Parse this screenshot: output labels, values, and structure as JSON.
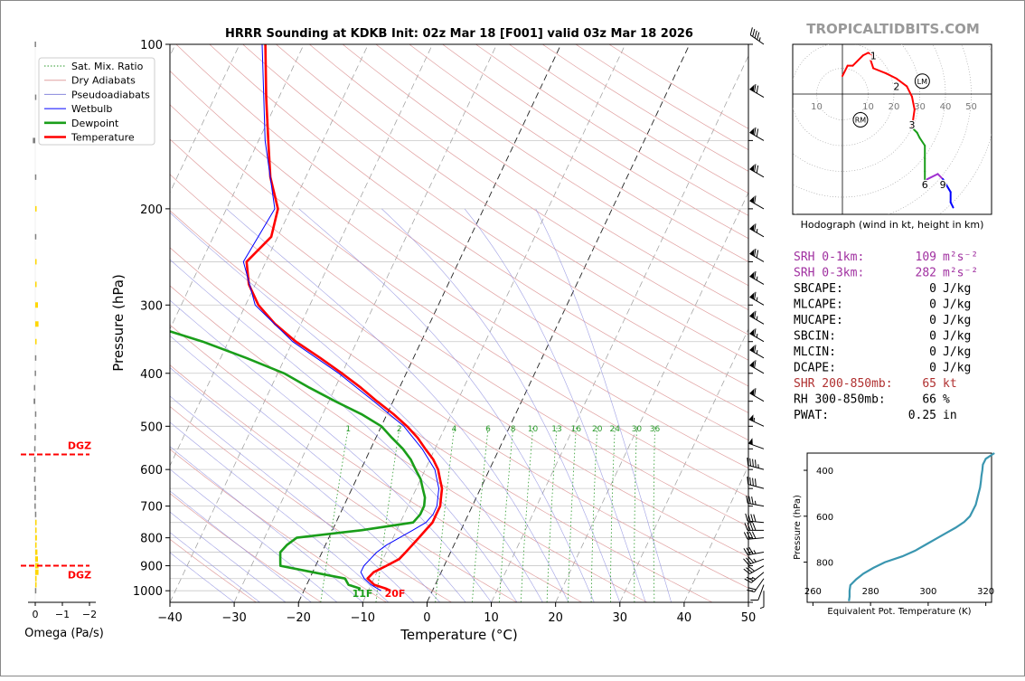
{
  "watermark": "TROPICALTIDBITS.COM",
  "colors": {
    "temperature": "#ff0000",
    "dewpoint": "#1a9e1a",
    "wetbulb": "#0000ff",
    "dgz": "#ff0000",
    "srh": "#a030a0",
    "shear": "#b03030",
    "omega_up": "#ffd700",
    "omega_down": "#808080",
    "theta_e": "#3a96b0"
  },
  "indices": [
    {
      "label": "SRH 0-1km:",
      "value": "109",
      "unit": "m²s⁻²",
      "color": "#a030a0"
    },
    {
      "label": "SRH 0-3km:",
      "value": "282",
      "unit": "m²s⁻²",
      "color": "#a030a0"
    },
    {
      "label": "SBCAPE:",
      "value": "0",
      "unit": "J/kg",
      "color": "#000"
    },
    {
      "label": "MLCAPE:",
      "value": "0",
      "unit": "J/kg",
      "color": "#000"
    },
    {
      "label": "MUCAPE:",
      "value": "0",
      "unit": "J/kg",
      "color": "#000"
    },
    {
      "label": "SBCIN:",
      "value": "0",
      "unit": "J/kg",
      "color": "#000"
    },
    {
      "label": "MLCIN:",
      "value": "0",
      "unit": "J/kg",
      "color": "#000"
    },
    {
      "label": "DCAPE:",
      "value": "0",
      "unit": "J/kg",
      "color": "#000"
    },
    {
      "label": "SHR 200-850mb:",
      "value": "65",
      "unit": "kt",
      "color": "#b03030"
    },
    {
      "label": "RH 300-850mb:",
      "value": "66",
      "unit": "%",
      "color": "#000"
    },
    {
      "label": "PWAT:",
      "value": "0.25",
      "unit": "in",
      "color": "#000"
    }
  ],
  "chart_data": [
    {
      "type": "line",
      "title": "HRRR Sounding at KDKB Init: 02z Mar 18 [F001] valid 03z Mar 18 2026",
      "xlabel": "Temperature (°C)",
      "ylabel": "Pressure (hPa)",
      "xlim": [
        -40,
        50
      ],
      "ylim": [
        1050,
        100
      ],
      "y_log_scale": true,
      "skew_deg_per_decade_approx": 40,
      "xticks": [
        -40,
        -30,
        -20,
        -10,
        0,
        10,
        20,
        30,
        40,
        50
      ],
      "yticks": [
        100,
        200,
        300,
        400,
        500,
        600,
        700,
        800,
        900,
        1000
      ],
      "xtick_labels": [
        "−40",
        "−30",
        "−20",
        "−10",
        "0",
        "10",
        "20",
        "30",
        "40",
        "50"
      ],
      "ytick_labels": [
        "100",
        "200",
        "300",
        "400",
        "500",
        "600",
        "700",
        "800",
        "900",
        "1000"
      ],
      "legend_position": "top-left",
      "legend": [
        "Sat. Mix. Ratio",
        "Dry Adiabats",
        "Pseudoadiabats",
        "Wetbulb",
        "Dewpoint",
        "Temperature"
      ],
      "mixing_ratio_labels": [
        "1",
        "2",
        "4",
        "6",
        "8",
        "10",
        "13",
        "16",
        "20",
        "24",
        "30",
        "36"
      ],
      "surface_labels": {
        "dewpoint": "11F",
        "temperature": "20F"
      },
      "series": [
        {
          "name": "Temperature",
          "pressure": [
            1000,
            990,
            975,
            950,
            925,
            900,
            875,
            850,
            825,
            800,
            775,
            750,
            725,
            700,
            675,
            650,
            625,
            600,
            575,
            550,
            525,
            500,
            475,
            450,
            425,
            400,
            375,
            350,
            325,
            300,
            275,
            250,
            225,
            200,
            175,
            150,
            125,
            100
          ],
          "values": [
            -6.5,
            -7.5,
            -9.5,
            -11.0,
            -10.5,
            -9.0,
            -7.5,
            -7.0,
            -6.5,
            -6.0,
            -5.5,
            -5.0,
            -5.0,
            -5.0,
            -5.5,
            -6.0,
            -7.0,
            -8.0,
            -9.5,
            -11.5,
            -13.5,
            -16.0,
            -19.0,
            -22.5,
            -26.0,
            -30.0,
            -34.5,
            -39.5,
            -44.0,
            -48.0,
            -51.0,
            -53.0,
            -51.0,
            -52.0,
            -55.5,
            -58.5,
            -62.0,
            -66.0
          ]
        },
        {
          "name": "Dewpoint",
          "pressure": [
            1000,
            990,
            975,
            950,
            925,
            900,
            875,
            850,
            825,
            800,
            775,
            750,
            725,
            700,
            675,
            650,
            625,
            600,
            575,
            550,
            525,
            500,
            475,
            450,
            425,
            400,
            375,
            350,
            325,
            300,
            275,
            250,
            225,
            200,
            175,
            150,
            125,
            100
          ],
          "values": [
            -11.5,
            -11.5,
            -13.5,
            -14.5,
            -20.0,
            -25.5,
            -26.0,
            -26.5,
            -26.0,
            -25.0,
            -15.5,
            -8.0,
            -7.5,
            -7.5,
            -8.0,
            -9.0,
            -10.0,
            -11.5,
            -13.0,
            -15.0,
            -17.5,
            -20.0,
            -24.0,
            -29.0,
            -34.0,
            -39.0,
            -46.0,
            -54.0,
            -64.0,
            -70.0,
            -76.0,
            -80.0,
            -78.0,
            -82.0,
            -86.0,
            -90.0,
            -94.0,
            -98.0
          ]
        },
        {
          "name": "Wetbulb",
          "pressure": [
            1000,
            975,
            950,
            925,
            900,
            875,
            850,
            825,
            800,
            775,
            750,
            725,
            700,
            650,
            600,
            550,
            500,
            450,
            400,
            350,
            300,
            250,
            200,
            150,
            100
          ],
          "values": [
            -8.0,
            -10.0,
            -11.5,
            -12.5,
            -12.5,
            -12.0,
            -11.5,
            -10.5,
            -9.0,
            -7.5,
            -6.0,
            -5.5,
            -5.5,
            -6.5,
            -8.5,
            -12.0,
            -16.5,
            -23.0,
            -30.5,
            -40.0,
            -48.5,
            -53.5,
            -52.5,
            -59.0,
            -66.5
          ]
        }
      ],
      "dgz_levels_hpa": [
        563,
        900
      ],
      "dgz_label": "DGZ"
    },
    {
      "type": "bar",
      "title": "",
      "xlabel": "Omega (Pa/s)",
      "xticks": [
        0,
        -1,
        -2
      ],
      "xtick_labels": [
        "0",
        "−1",
        "−2"
      ],
      "xlim": [
        0.2,
        -2.2
      ],
      "pressure": [
        1000,
        975,
        950,
        925,
        900,
        875,
        850,
        825,
        800,
        775,
        750,
        725,
        700,
        675,
        650,
        625,
        600,
        575,
        550,
        525,
        500,
        475,
        450,
        425,
        400,
        375,
        350,
        325,
        300,
        275,
        250,
        225,
        200,
        175,
        150,
        125,
        100
      ],
      "values": [
        0.01,
        -0.02,
        -0.05,
        -0.12,
        -0.12,
        -0.1,
        -0.08,
        -0.05,
        -0.06,
        -0.05,
        -0.03,
        0.01,
        0.03,
        0.03,
        0.02,
        0.05,
        0.03,
        0.04,
        0.04,
        0.03,
        0.02,
        0.01,
        0.06,
        0.05,
        0.02,
        0.01,
        -0.02,
        -0.12,
        -0.1,
        -0.03,
        -0.02,
        0.01,
        -0.01,
        0.01,
        0.09,
        0.01,
        0.02
      ]
    },
    {
      "type": "line",
      "title": "Hodograph (wind in kt, height in km)",
      "xlabel": "",
      "ylabel": "",
      "ring_labels": [
        "10",
        "10",
        "20",
        "30",
        "40",
        "50"
      ],
      "markers": [
        {
          "label": "LM",
          "u": 31,
          "v": 5
        },
        {
          "label": "RM",
          "u": 7,
          "v": -10
        }
      ],
      "height_labels": [
        {
          "label": "1",
          "u": 12,
          "v": 15
        },
        {
          "label": "2",
          "u": 21,
          "v": 3
        },
        {
          "label": "3",
          "u": 27,
          "v": -12
        },
        {
          "label": "6",
          "u": 32,
          "v": -35
        },
        {
          "label": "9",
          "u": 39,
          "v": -35
        }
      ],
      "u": [
        0,
        2,
        4,
        8,
        10,
        12,
        11,
        12,
        17,
        21,
        25,
        27,
        28,
        27,
        29,
        30,
        32,
        32,
        32,
        32,
        32,
        33,
        37,
        39,
        42,
        42,
        43
      ],
      "v": [
        7,
        11,
        11,
        15,
        16,
        15,
        13,
        10,
        8,
        6,
        3,
        -1,
        -6,
        -13,
        -15,
        -17,
        -20,
        -25,
        -30,
        -35,
        -34,
        -33,
        -31,
        -33,
        -38,
        -42,
        -44
      ],
      "segment_colors": [
        "#ff0000",
        "#ff0000",
        "#ff0000",
        "#ff0000",
        "#ff0000",
        "#ff0000",
        "#ff0000",
        "#ff0000",
        "#ff0000",
        "#ff0000",
        "#ff0000",
        "#ff0000",
        "#ff0000",
        "#1a9e1a",
        "#1a9e1a",
        "#1a9e1a",
        "#1a9e1a",
        "#1a9e1a",
        "#1a9e1a",
        "#a030d0",
        "#a030d0",
        "#a030d0",
        "#a030d0",
        "#0000ff",
        "#0000ff",
        "#0000ff"
      ]
    },
    {
      "type": "line",
      "title": "",
      "xlabel": "Equivalent Pot. Temperature (K)",
      "ylabel": "Pressure (hPa)",
      "xlim": [
        258,
        322
      ],
      "ylim": [
        975,
        325
      ],
      "xticks": [
        260,
        280,
        300,
        320
      ],
      "yticks": [
        400,
        600,
        800
      ],
      "pressure": [
        970,
        950,
        925,
        900,
        875,
        850,
        825,
        800,
        775,
        750,
        725,
        700,
        675,
        650,
        625,
        600,
        575,
        550,
        525,
        500,
        475,
        450,
        425,
        400,
        375,
        350,
        325
      ],
      "values": [
        272.5,
        272.7,
        272.7,
        273,
        275,
        277.5,
        281,
        285,
        291,
        295.5,
        299,
        302.5,
        306,
        309.5,
        312.5,
        314.5,
        315.5,
        316.5,
        317,
        317.5,
        318,
        318.3,
        318.5,
        318.8,
        319,
        320,
        323
      ]
    }
  ],
  "wind_barbs": [
    {
      "p": 1000,
      "dir": 180,
      "spd": 7
    },
    {
      "p": 975,
      "dir": 200,
      "spd": 12
    },
    {
      "p": 950,
      "dir": 215,
      "spd": 18
    },
    {
      "p": 925,
      "dir": 230,
      "spd": 24
    },
    {
      "p": 900,
      "dir": 240,
      "spd": 28
    },
    {
      "p": 875,
      "dir": 250,
      "spd": 33
    },
    {
      "p": 850,
      "dir": 260,
      "spd": 35
    },
    {
      "p": 800,
      "dir": 265,
      "spd": 40
    },
    {
      "p": 775,
      "dir": 270,
      "spd": 38
    },
    {
      "p": 750,
      "dir": 275,
      "spd": 38
    },
    {
      "p": 700,
      "dir": 280,
      "spd": 36
    },
    {
      "p": 650,
      "dir": 285,
      "spd": 40
    },
    {
      "p": 600,
      "dir": 285,
      "spd": 45
    },
    {
      "p": 550,
      "dir": 290,
      "spd": 48
    },
    {
      "p": 500,
      "dir": 295,
      "spd": 55
    },
    {
      "p": 450,
      "dir": 300,
      "spd": 58
    },
    {
      "p": 400,
      "dir": 300,
      "spd": 62
    },
    {
      "p": 375,
      "dir": 300,
      "spd": 63
    },
    {
      "p": 350,
      "dir": 300,
      "spd": 65
    },
    {
      "p": 325,
      "dir": 300,
      "spd": 65
    },
    {
      "p": 300,
      "dir": 300,
      "spd": 67
    },
    {
      "p": 275,
      "dir": 300,
      "spd": 66
    },
    {
      "p": 250,
      "dir": 300,
      "spd": 68
    },
    {
      "p": 225,
      "dir": 300,
      "spd": 64
    },
    {
      "p": 200,
      "dir": 300,
      "spd": 60
    },
    {
      "p": 175,
      "dir": 300,
      "spd": 68
    },
    {
      "p": 150,
      "dir": 300,
      "spd": 70
    },
    {
      "p": 125,
      "dir": 300,
      "spd": 68
    },
    {
      "p": 100,
      "dir": 305,
      "spd": 45
    }
  ]
}
